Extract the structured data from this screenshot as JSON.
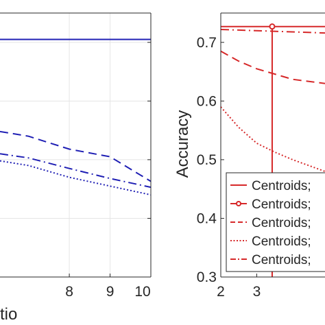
{
  "colors": {
    "left_series": "#1f1fb4",
    "right_series": "#d62728",
    "grid": "#e5e5e5",
    "axis": "#262626"
  },
  "chart_data": [
    {
      "type": "line",
      "xlabel": "Ratio",
      "xlabel_visible": "tio",
      "ylabel": "",
      "xlim": [
        6.3,
        10
      ],
      "ylim": [
        0.3,
        0.75
      ],
      "x_ticks": [
        "8",
        "9",
        "10"
      ],
      "x_tick_values": [
        8,
        9,
        10
      ],
      "y_grid_values": [
        0.4,
        0.5,
        0.6,
        0.7
      ],
      "grid": true,
      "series": [
        {
          "style": "solid",
          "x": [
            6.3,
            10
          ],
          "y": [
            0.705,
            0.705
          ]
        },
        {
          "style": "dashed",
          "x": [
            6.3,
            7,
            8,
            9,
            10
          ],
          "y": [
            0.548,
            0.54,
            0.518,
            0.505,
            0.463
          ]
        },
        {
          "style": "dashdot",
          "x": [
            6.3,
            7,
            8,
            9,
            10
          ],
          "y": [
            0.51,
            0.503,
            0.485,
            0.468,
            0.453
          ]
        },
        {
          "style": "dotted",
          "x": [
            6.3,
            7,
            8,
            9,
            10
          ],
          "y": [
            0.498,
            0.49,
            0.47,
            0.455,
            0.44
          ]
        }
      ]
    },
    {
      "type": "line",
      "xlabel": "",
      "ylabel": "Accuracy",
      "xlim": [
        2,
        4.9
      ],
      "ylim": [
        0.3,
        0.75
      ],
      "y_ticks": [
        "0.3",
        "0.4",
        "0.5",
        "0.6",
        "0.7"
      ],
      "y_tick_values": [
        0.3,
        0.4,
        0.5,
        0.6,
        0.7
      ],
      "x_ticks": [
        "2",
        "3"
      ],
      "x_tick_values": [
        2,
        3
      ],
      "legend_position": "lower-right",
      "legend": [
        {
          "label": "Centroids;",
          "style": "solid",
          "marker": false
        },
        {
          "label": "Centroids;",
          "style": "solid",
          "marker": true
        },
        {
          "label": "Centroids;",
          "style": "dashed",
          "marker": false
        },
        {
          "label": "Centroids;",
          "style": "dotted",
          "marker": false
        },
        {
          "label": "Centroids;",
          "style": "dashdot",
          "marker": false
        }
      ],
      "series": [
        {
          "style": "solid",
          "x": [
            2,
            4.9
          ],
          "y": [
            0.727,
            0.727
          ]
        },
        {
          "style": "solid-marker",
          "vertical_line_x": 3.43,
          "marker": {
            "x": 3.43,
            "y": 0.727
          }
        },
        {
          "style": "dashed",
          "x": [
            2,
            2.5,
            3,
            3.5,
            4,
            4.9
          ],
          "y": [
            0.685,
            0.668,
            0.655,
            0.646,
            0.637,
            0.63
          ]
        },
        {
          "style": "dotted",
          "x": [
            2,
            2.5,
            3,
            3.5,
            4,
            4.9
          ],
          "y": [
            0.59,
            0.555,
            0.528,
            0.513,
            0.5,
            0.48
          ]
        },
        {
          "style": "dashdot",
          "x": [
            2,
            4.9
          ],
          "y": [
            0.722,
            0.716
          ]
        }
      ]
    }
  ]
}
